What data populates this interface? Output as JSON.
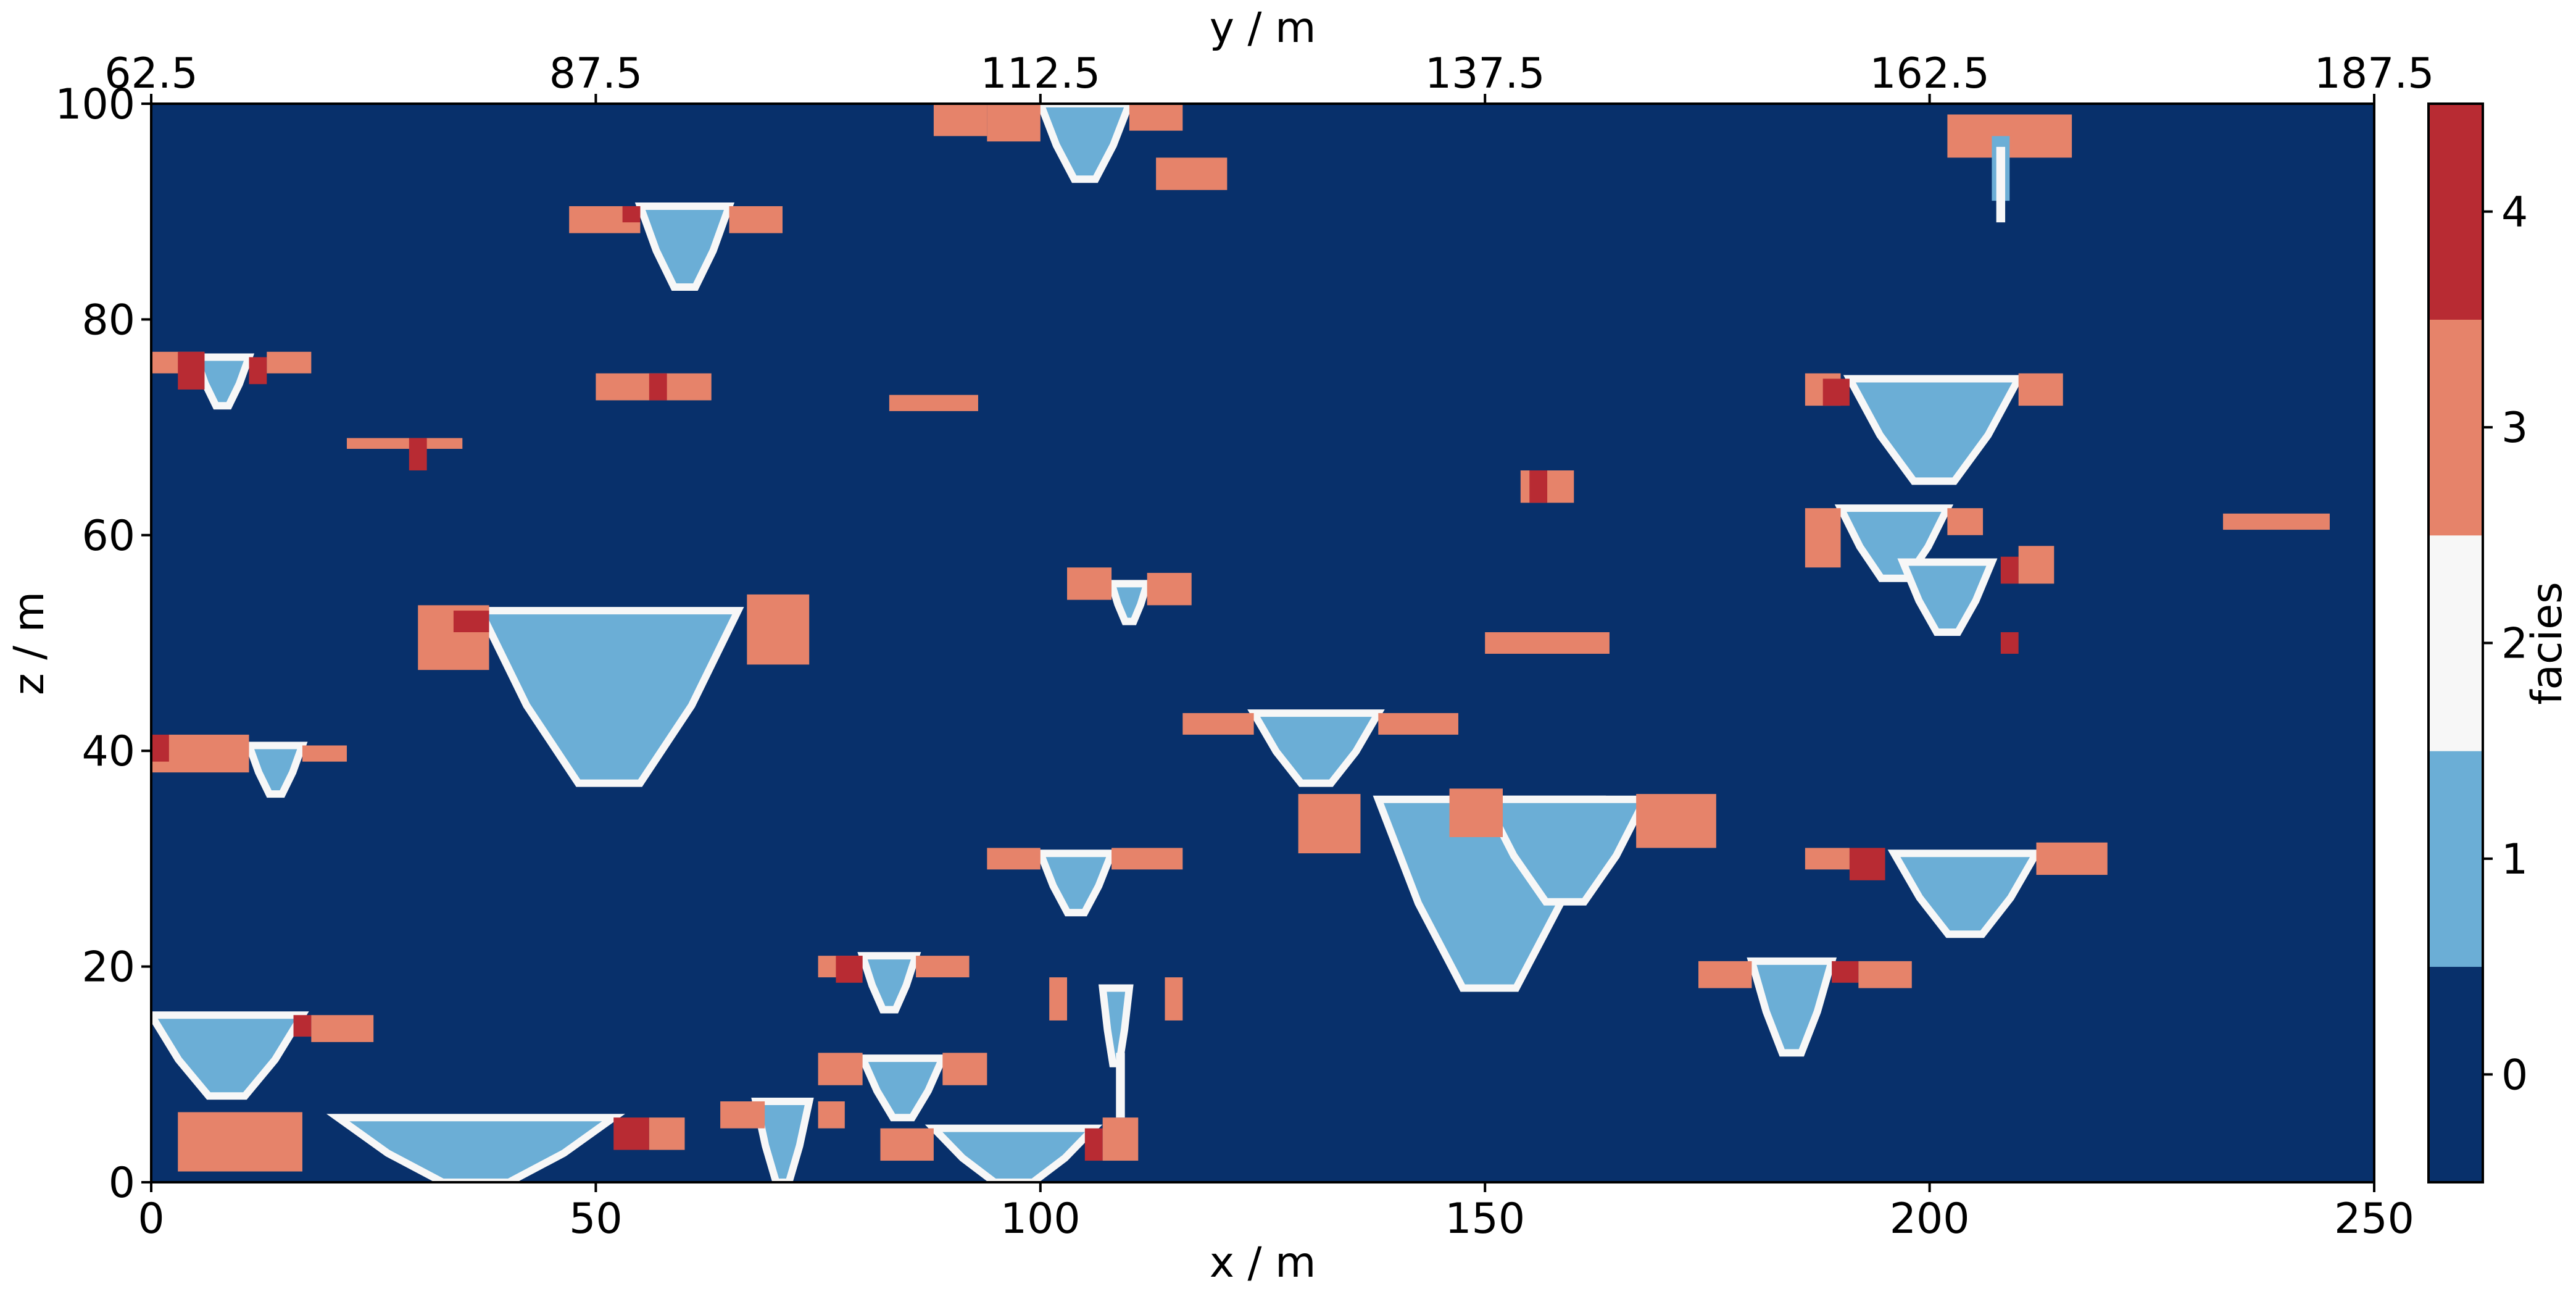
{
  "chart_data": {
    "type": "heatmap",
    "title": "",
    "xlabel": "x / m",
    "ylabel": "z / m",
    "x2label": "y / m",
    "xlim": [
      0,
      250
    ],
    "ylim": [
      0,
      100
    ],
    "x2lim": [
      62.5,
      187.5
    ],
    "xticks": [
      "0",
      "50",
      "100",
      "150",
      "200",
      "250"
    ],
    "yticks": [
      "0",
      "20",
      "40",
      "60",
      "80",
      "100"
    ],
    "x2ticks": [
      "62.5",
      "87.5",
      "112.5",
      "137.5",
      "162.5",
      "187.5"
    ],
    "grid": false,
    "colorbar": {
      "label": "facies",
      "ticks": [
        "0",
        "1",
        "2",
        "3",
        "4"
      ],
      "colors": [
        "#08306b",
        "#6baed6",
        "#f7f7f7",
        "#e6836a",
        "#b82b33"
      ]
    },
    "background_facies": 0,
    "bodies": [
      {
        "facies": 1,
        "shape": "trough",
        "x": [
          37,
          66
        ],
        "top": 53,
        "bottom": 37
      },
      {
        "facies": 3,
        "shape": "rect",
        "x": [
          30,
          38
        ],
        "z": [
          47.5,
          53.5
        ]
      },
      {
        "facies": 4,
        "shape": "rect",
        "x": [
          34,
          38
        ],
        "z": [
          51,
          53
        ]
      },
      {
        "facies": 3,
        "shape": "rect",
        "x": [
          67,
          74
        ],
        "z": [
          48,
          54.5
        ]
      },
      {
        "facies": 1,
        "shape": "trough",
        "x": [
          138,
          163
        ],
        "top": 35.5,
        "bottom": 18
      },
      {
        "facies": 1,
        "shape": "trough",
        "x": [
          150,
          168
        ],
        "top": 35.5,
        "bottom": 26
      },
      {
        "facies": 3,
        "shape": "rect",
        "x": [
          129,
          136
        ],
        "z": [
          30.5,
          36
        ]
      },
      {
        "facies": 3,
        "shape": "rect",
        "x": [
          146,
          152
        ],
        "z": [
          32,
          36.5
        ]
      },
      {
        "facies": 3,
        "shape": "rect",
        "x": [
          167,
          176
        ],
        "z": [
          31,
          36
        ]
      },
      {
        "facies": 1,
        "shape": "trough",
        "x": [
          21,
          52
        ],
        "top": 6,
        "bottom": 0
      },
      {
        "facies": 3,
        "shape": "rect",
        "x": [
          3,
          17
        ],
        "z": [
          1,
          6.5
        ]
      },
      {
        "facies": 4,
        "shape": "rect",
        "x": [
          52,
          56
        ],
        "z": [
          3,
          6
        ]
      },
      {
        "facies": 3,
        "shape": "rect",
        "x": [
          56,
          60
        ],
        "z": [
          3,
          6
        ]
      },
      {
        "facies": 1,
        "shape": "trough",
        "x": [
          88,
          106
        ],
        "top": 5,
        "bottom": 0
      },
      {
        "facies": 3,
        "shape": "rect",
        "x": [
          82,
          88
        ],
        "z": [
          2,
          5
        ]
      },
      {
        "facies": 4,
        "shape": "rect",
        "x": [
          105,
          107
        ],
        "z": [
          2,
          5
        ]
      },
      {
        "facies": 3,
        "shape": "rect",
        "x": [
          107,
          111
        ],
        "z": [
          2,
          6
        ]
      },
      {
        "facies": 1,
        "shape": "trough",
        "x": [
          0,
          17
        ],
        "top": 15.5,
        "bottom": 8
      },
      {
        "facies": 4,
        "shape": "rect",
        "x": [
          16,
          18
        ],
        "z": [
          13.5,
          15.5
        ]
      },
      {
        "facies": 3,
        "shape": "rect",
        "x": [
          18,
          25
        ],
        "z": [
          13,
          15.5
        ]
      },
      {
        "facies": 1,
        "shape": "trough",
        "x": [
          196,
          212
        ],
        "top": 30.5,
        "bottom": 23
      },
      {
        "facies": 3,
        "shape": "rect",
        "x": [
          186,
          191
        ],
        "z": [
          29,
          31
        ]
      },
      {
        "facies": 4,
        "shape": "rect",
        "x": [
          191,
          195
        ],
        "z": [
          28,
          31
        ]
      },
      {
        "facies": 3,
        "shape": "rect",
        "x": [
          212,
          220
        ],
        "z": [
          28.5,
          31.5
        ]
      },
      {
        "facies": 1,
        "shape": "trough",
        "x": [
          191,
          210
        ],
        "top": 74.5,
        "bottom": 65
      },
      {
        "facies": 3,
        "shape": "rect",
        "x": [
          186,
          190
        ],
        "z": [
          72,
          75
        ]
      },
      {
        "facies": 4,
        "shape": "rect",
        "x": [
          188,
          191
        ],
        "z": [
          72,
          74.5
        ]
      },
      {
        "facies": 3,
        "shape": "rect",
        "x": [
          210,
          215
        ],
        "z": [
          72,
          75
        ]
      },
      {
        "facies": 1,
        "shape": "trough",
        "x": [
          190,
          202
        ],
        "top": 62.5,
        "bottom": 56
      },
      {
        "facies": 3,
        "shape": "rect",
        "x": [
          186,
          190
        ],
        "z": [
          57,
          62.5
        ]
      },
      {
        "facies": 3,
        "shape": "rect",
        "x": [
          202,
          206
        ],
        "z": [
          60,
          62.5
        ]
      },
      {
        "facies": 1,
        "shape": "trough",
        "x": [
          197,
          207
        ],
        "top": 57.5,
        "bottom": 51
      },
      {
        "facies": 4,
        "shape": "rect",
        "x": [
          208,
          210
        ],
        "z": [
          55.5,
          58
        ]
      },
      {
        "facies": 3,
        "shape": "rect",
        "x": [
          210,
          214
        ],
        "z": [
          55.5,
          59
        ]
      },
      {
        "facies": 4,
        "shape": "rect",
        "x": [
          208,
          210
        ],
        "z": [
          49,
          51
        ]
      },
      {
        "facies": 1,
        "shape": "trough",
        "x": [
          124,
          138
        ],
        "top": 43.5,
        "bottom": 37
      },
      {
        "facies": 3,
        "shape": "rect",
        "x": [
          116,
          124
        ],
        "z": [
          41.5,
          43.5
        ]
      },
      {
        "facies": 3,
        "shape": "rect",
        "x": [
          138,
          147
        ],
        "z": [
          41.5,
          43.5
        ]
      },
      {
        "facies": 1,
        "shape": "trough",
        "x": [
          100,
          110
        ],
        "top": 100,
        "bottom": 93
      },
      {
        "facies": 3,
        "shape": "rect",
        "x": [
          88,
          94
        ],
        "z": [
          97,
          100
        ]
      },
      {
        "facies": 3,
        "shape": "rect",
        "x": [
          94,
          100
        ],
        "z": [
          96.5,
          100
        ]
      },
      {
        "facies": 3,
        "shape": "rect",
        "x": [
          110,
          116
        ],
        "z": [
          97.5,
          100
        ]
      },
      {
        "facies": 3,
        "shape": "rect",
        "x": [
          113,
          121
        ],
        "z": [
          92,
          95
        ]
      },
      {
        "facies": 1,
        "shape": "trough",
        "x": [
          55,
          65
        ],
        "top": 90.5,
        "bottom": 83
      },
      {
        "facies": 3,
        "shape": "rect",
        "x": [
          47,
          55
        ],
        "z": [
          88,
          90.5
        ]
      },
      {
        "facies": 4,
        "shape": "rect",
        "x": [
          53,
          55
        ],
        "z": [
          89,
          90.5
        ]
      },
      {
        "facies": 3,
        "shape": "rect",
        "x": [
          65,
          71
        ],
        "z": [
          88,
          90.5
        ]
      },
      {
        "facies": 1,
        "shape": "trough",
        "x": [
          180,
          189
        ],
        "top": 20.5,
        "bottom": 12
      },
      {
        "facies": 3,
        "shape": "rect",
        "x": [
          174,
          180
        ],
        "z": [
          18,
          20.5
        ]
      },
      {
        "facies": 4,
        "shape": "rect",
        "x": [
          189,
          192
        ],
        "z": [
          18.5,
          20.5
        ]
      },
      {
        "facies": 3,
        "shape": "rect",
        "x": [
          192,
          198
        ],
        "z": [
          18,
          20.5
        ]
      },
      {
        "facies": 1,
        "shape": "trough",
        "x": [
          100,
          108
        ],
        "top": 30.5,
        "bottom": 25
      },
      {
        "facies": 3,
        "shape": "rect",
        "x": [
          94,
          100
        ],
        "z": [
          29,
          31
        ]
      },
      {
        "facies": 3,
        "shape": "rect",
        "x": [
          108,
          116
        ],
        "z": [
          29,
          31
        ]
      },
      {
        "facies": 1,
        "shape": "trough",
        "x": [
          80,
          89
        ],
        "top": 11.5,
        "bottom": 6
      },
      {
        "facies": 3,
        "shape": "rect",
        "x": [
          75,
          80
        ],
        "z": [
          9,
          12
        ]
      },
      {
        "facies": 3,
        "shape": "rect",
        "x": [
          89,
          94
        ],
        "z": [
          9,
          12
        ]
      },
      {
        "facies": 1,
        "shape": "trough",
        "x": [
          80,
          86
        ],
        "top": 21,
        "bottom": 16
      },
      {
        "facies": 3,
        "shape": "rect",
        "x": [
          75,
          80
        ],
        "z": [
          19,
          21
        ]
      },
      {
        "facies": 4,
        "shape": "rect",
        "x": [
          77,
          80
        ],
        "z": [
          18.5,
          21
        ]
      },
      {
        "facies": 3,
        "shape": "rect",
        "x": [
          86,
          92
        ],
        "z": [
          19,
          21
        ]
      },
      {
        "facies": 1,
        "shape": "trough",
        "x": [
          68,
          74
        ],
        "top": 7.5,
        "bottom": 0
      },
      {
        "facies": 3,
        "shape": "rect",
        "x": [
          64,
          69
        ],
        "z": [
          5,
          7.5
        ]
      },
      {
        "facies": 3,
        "shape": "rect",
        "x": [
          75,
          78
        ],
        "z": [
          5,
          7.5
        ]
      },
      {
        "facies": 1,
        "shape": "trough",
        "x": [
          11,
          17
        ],
        "top": 40.5,
        "bottom": 36
      },
      {
        "facies": 3,
        "shape": "rect",
        "x": [
          0,
          11
        ],
        "z": [
          38,
          41.5
        ]
      },
      {
        "facies": 4,
        "shape": "rect",
        "x": [
          0,
          2
        ],
        "z": [
          39,
          41.5
        ]
      },
      {
        "facies": 3,
        "shape": "rect",
        "x": [
          17,
          22
        ],
        "z": [
          39,
          40.5
        ]
      },
      {
        "facies": 1,
        "shape": "trough",
        "x": [
          5,
          11
        ],
        "top": 76.5,
        "bottom": 72
      },
      {
        "facies": 3,
        "shape": "rect",
        "x": [
          0,
          6
        ],
        "z": [
          75,
          77
        ]
      },
      {
        "facies": 4,
        "shape": "rect",
        "x": [
          3,
          6
        ],
        "z": [
          73.5,
          77
        ]
      },
      {
        "facies": 4,
        "shape": "rect",
        "x": [
          11,
          13
        ],
        "z": [
          74,
          76.5
        ]
      },
      {
        "facies": 3,
        "shape": "rect",
        "x": [
          13,
          18
        ],
        "z": [
          75,
          77
        ]
      },
      {
        "facies": 3,
        "shape": "rect",
        "x": [
          50,
          63
        ],
        "z": [
          72.5,
          75
        ]
      },
      {
        "facies": 4,
        "shape": "rect",
        "x": [
          56,
          58
        ],
        "z": [
          72.5,
          75
        ]
      },
      {
        "facies": 1,
        "shape": "trough",
        "x": [
          108,
          112
        ],
        "top": 55.5,
        "bottom": 52
      },
      {
        "facies": 3,
        "shape": "rect",
        "x": [
          103,
          108
        ],
        "z": [
          54,
          57
        ]
      },
      {
        "facies": 3,
        "shape": "rect",
        "x": [
          112,
          117
        ],
        "z": [
          53.5,
          56.5
        ]
      },
      {
        "facies": 3,
        "shape": "rect",
        "x": [
          154,
          160
        ],
        "z": [
          63,
          66
        ]
      },
      {
        "facies": 4,
        "shape": "rect",
        "x": [
          155,
          157
        ],
        "z": [
          63,
          66
        ]
      },
      {
        "facies": 3,
        "shape": "rect",
        "x": [
          150,
          164
        ],
        "z": [
          49,
          51
        ]
      },
      {
        "facies": 3,
        "shape": "rect",
        "x": [
          22,
          35
        ],
        "z": [
          68,
          69
        ]
      },
      {
        "facies": 4,
        "shape": "rect",
        "x": [
          29,
          31
        ],
        "z": [
          66,
          69
        ]
      },
      {
        "facies": 3,
        "shape": "rect",
        "x": [
          83,
          93
        ],
        "z": [
          71.5,
          73
        ]
      },
      {
        "facies": 3,
        "shape": "rect",
        "x": [
          233,
          245
        ],
        "z": [
          60.5,
          62
        ]
      },
      {
        "facies": 3,
        "shape": "rect",
        "x": [
          202,
          216
        ],
        "z": [
          95,
          99
        ]
      },
      {
        "facies": 1,
        "shape": "rect",
        "x": [
          207,
          209
        ],
        "z": [
          91,
          97
        ]
      },
      {
        "facies": 3,
        "shape": "rect",
        "x": [
          101,
          103
        ],
        "z": [
          15,
          19
        ]
      },
      {
        "facies": 3,
        "shape": "rect",
        "x": [
          114,
          116
        ],
        "z": [
          15,
          19
        ]
      },
      {
        "facies": 1,
        "shape": "trough",
        "x": [
          107,
          110
        ],
        "top": 18,
        "bottom": 11
      }
    ],
    "white_lines": [
      {
        "x": [
          108.5,
          109.5
        ],
        "z": [
          6,
          12
        ]
      },
      {
        "x": [
          207.5,
          208.5
        ],
        "z": [
          89,
          96
        ]
      }
    ]
  }
}
